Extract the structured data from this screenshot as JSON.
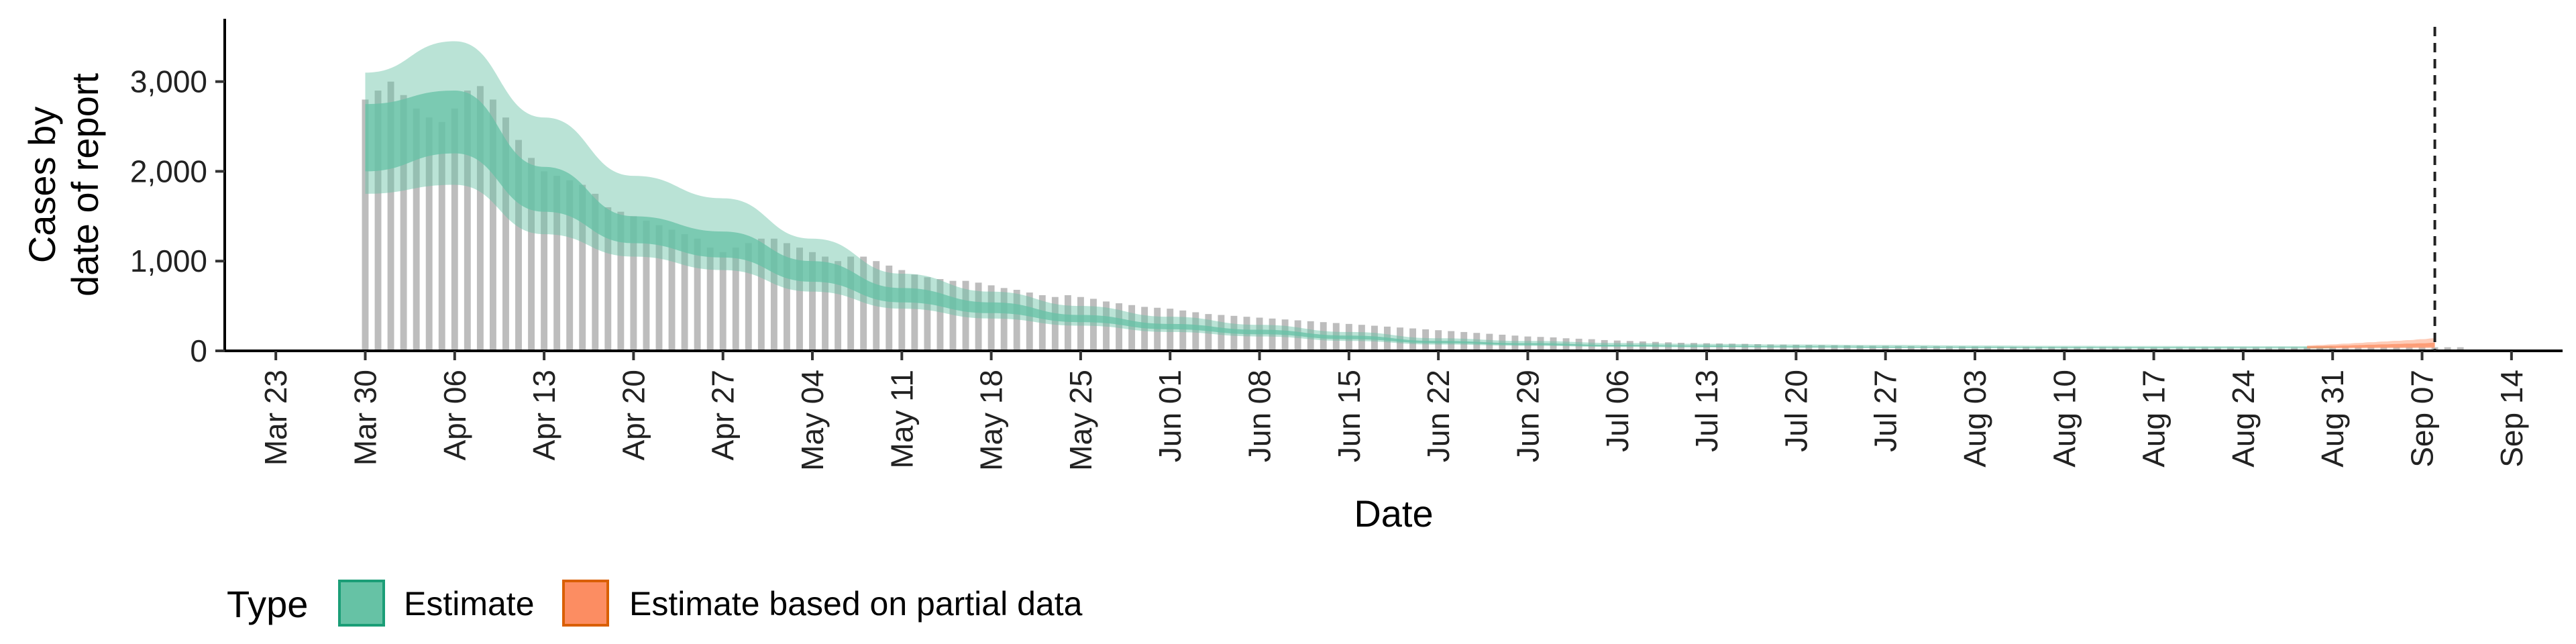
{
  "chart_data": {
    "type": "bar",
    "xlabel": "Date",
    "ylabel": [
      "Cases by",
      "date of report"
    ],
    "ylim": [
      0,
      3700
    ],
    "y_ticks": [
      0,
      1000,
      2000,
      3000
    ],
    "y_tick_labels": [
      "0",
      "1,000",
      "2,000",
      "3,000"
    ],
    "x_range": [
      "2020-03-19",
      "2020-09-18"
    ],
    "x_ticks": [
      "2020-03-23",
      "2020-03-30",
      "2020-04-06",
      "2020-04-13",
      "2020-04-20",
      "2020-04-27",
      "2020-05-04",
      "2020-05-11",
      "2020-05-18",
      "2020-05-25",
      "2020-06-01",
      "2020-06-08",
      "2020-06-15",
      "2020-06-22",
      "2020-06-29",
      "2020-07-06",
      "2020-07-13",
      "2020-07-20",
      "2020-07-27",
      "2020-08-03",
      "2020-08-10",
      "2020-08-17",
      "2020-08-24",
      "2020-08-31",
      "2020-09-07",
      "2020-09-14"
    ],
    "x_tick_labels": [
      "Mar 23",
      "Mar 30",
      "Apr 06",
      "Apr 13",
      "Apr 20",
      "Apr 27",
      "May 04",
      "May 11",
      "May 18",
      "May 25",
      "Jun 01",
      "Jun 08",
      "Jun 15",
      "Jun 22",
      "Jun 29",
      "Jul 06",
      "Jul 13",
      "Jul 20",
      "Jul 27",
      "Aug 03",
      "Aug 10",
      "Aug 17",
      "Aug 24",
      "Aug 31",
      "Sep 07",
      "Sep 14"
    ],
    "reference_line": "2020-09-08",
    "bars": {
      "start": "2020-03-30",
      "step_days": 1,
      "values": [
        2800,
        2900,
        3000,
        2850,
        2700,
        2600,
        2550,
        2700,
        2900,
        2950,
        2800,
        2600,
        2350,
        2150,
        2000,
        1950,
        1900,
        1850,
        1750,
        1600,
        1550,
        1500,
        1450,
        1400,
        1350,
        1300,
        1250,
        1150,
        1100,
        1150,
        1200,
        1250,
        1250,
        1200,
        1150,
        1100,
        1050,
        1000,
        1050,
        1050,
        1000,
        950,
        900,
        850,
        820,
        800,
        780,
        780,
        760,
        730,
        700,
        680,
        650,
        620,
        600,
        620,
        600,
        580,
        550,
        530,
        510,
        490,
        480,
        470,
        450,
        430,
        410,
        400,
        390,
        380,
        370,
        360,
        350,
        340,
        330,
        320,
        310,
        300,
        290,
        280,
        270,
        260,
        250,
        240,
        230,
        220,
        210,
        200,
        190,
        180,
        170,
        160,
        155,
        150,
        140,
        135,
        130,
        120,
        115,
        110,
        105,
        100,
        95,
        90,
        88,
        85,
        82,
        80,
        78,
        75,
        72,
        70,
        68,
        66,
        64,
        62,
        60,
        58,
        56,
        55,
        54,
        53,
        52,
        51,
        50,
        49,
        48,
        47,
        46,
        45,
        45,
        44,
        44,
        43,
        43,
        42,
        42,
        41,
        41,
        40,
        40,
        40,
        40,
        40,
        40,
        40,
        40,
        40,
        40,
        40,
        40,
        40,
        40,
        40,
        40,
        40,
        40,
        40,
        40,
        40,
        40,
        40,
        40,
        40,
        40
      ]
    },
    "series": [
      {
        "name": "Estimate",
        "color": "#1b9e77",
        "fill": "#66c2a5",
        "start": "2020-03-30",
        "step_days": 7,
        "median": [
          2300,
          2520,
          1780,
          1350,
          1180,
          880,
          620,
          480,
          360,
          270,
          210,
          150,
          95,
          75,
          58,
          52,
          45,
          40,
          38,
          35,
          33,
          32,
          32
        ],
        "inner_lo": [
          2000,
          2200,
          1550,
          1200,
          1040,
          770,
          540,
          420,
          320,
          240,
          185,
          130,
          85,
          65,
          50,
          45,
          40,
          36,
          34,
          32,
          30,
          30,
          30
        ],
        "inner_hi": [
          2750,
          2900,
          2050,
          1500,
          1330,
          1000,
          700,
          540,
          400,
          300,
          235,
          170,
          110,
          85,
          66,
          58,
          50,
          45,
          42,
          39,
          37,
          35,
          35
        ],
        "outer_lo": [
          1750,
          1850,
          1300,
          1050,
          900,
          660,
          470,
          360,
          280,
          210,
          160,
          110,
          70,
          55,
          43,
          38,
          34,
          30,
          28,
          26,
          25,
          25,
          25
        ],
        "outer_hi": [
          3100,
          3450,
          2600,
          1950,
          1700,
          1250,
          860,
          660,
          500,
          380,
          290,
          210,
          140,
          110,
          88,
          78,
          70,
          65,
          60,
          56,
          54,
          52,
          52
        ]
      },
      {
        "name": "Estimate based on partial data",
        "color": "#d95f02",
        "fill": "#fc8d62",
        "start": "2020-08-29",
        "step_days": 1,
        "median": [
          40,
          42,
          44,
          46,
          48,
          50,
          52,
          54,
          56,
          58,
          60
        ],
        "inner_lo": [
          32,
          33,
          34,
          35,
          36,
          37,
          38,
          39,
          40,
          41,
          42
        ],
        "inner_hi": [
          50,
          53,
          56,
          60,
          64,
          68,
          72,
          76,
          80,
          84,
          90
        ],
        "outer_lo": [
          25,
          25,
          26,
          26,
          27,
          27,
          28,
          28,
          29,
          29,
          30
        ],
        "outer_hi": [
          60,
          65,
          72,
          80,
          88,
          96,
          104,
          112,
          120,
          130,
          140
        ]
      }
    ],
    "legend": {
      "title": "Type",
      "position": "bottom-left",
      "items": [
        {
          "label": "Estimate",
          "fill": "#66c2a5",
          "stroke": "#1b9e77"
        },
        {
          "label": "Estimate based on partial data",
          "fill": "#fc8d62",
          "stroke": "#d95f02"
        }
      ]
    },
    "grid": false
  }
}
